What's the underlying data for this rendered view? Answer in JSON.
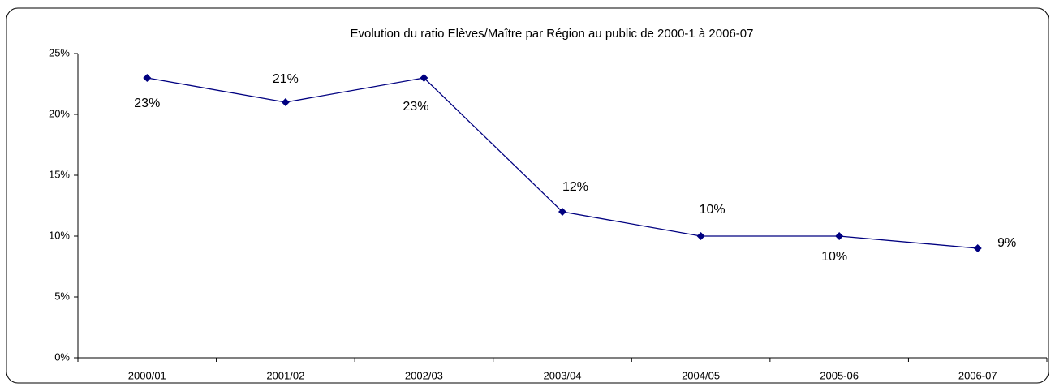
{
  "chart_data": {
    "type": "line",
    "title": "Evolution du ratio Elèves/Maître par Région au public de 2000-1 à 2006-07",
    "categories": [
      "2000/01",
      "2001/02",
      "2002/03",
      "2003/04",
      "2004/05",
      "2005-06",
      "2006-07"
    ],
    "series": [
      {
        "name": "Ratio",
        "color": "#000080",
        "values": [
          23,
          21,
          23,
          12,
          10,
          10,
          9
        ],
        "value_labels": [
          "23%",
          "21%",
          "23%",
          "12%",
          "10%",
          "10%",
          "9%"
        ]
      }
    ],
    "ylim": [
      0,
      25
    ],
    "yticks": [
      {
        "value": 0,
        "label": "0%"
      },
      {
        "value": 5,
        "label": "5%"
      },
      {
        "value": 10,
        "label": "10%"
      },
      {
        "value": 15,
        "label": "15%"
      },
      {
        "value": 20,
        "label": "20%"
      },
      {
        "value": 25,
        "label": "25%"
      }
    ],
    "grid": false
  }
}
